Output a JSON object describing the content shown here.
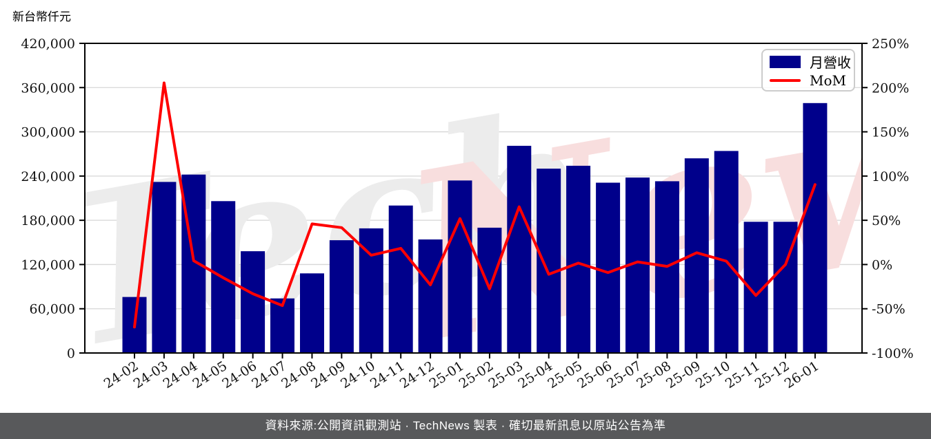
{
  "header": {
    "unit_label": "新台幣仟元"
  },
  "legend": {
    "items": [
      {
        "label": "月營收",
        "type": "bar",
        "color": "#00008B"
      },
      {
        "label": "MoM",
        "type": "line",
        "color": "#FF0000"
      }
    ]
  },
  "watermark": {
    "text": "TechNews",
    "part1": "Tech",
    "part2": "News",
    "color1": "#ECECEC",
    "color2": "#F8DEDE"
  },
  "footer": {
    "text": "資料來源:公開資訊觀測站 · TechNews 製表 · 確切最新訊息以原站公告為準",
    "background": "#58595B",
    "text_color": "#FFFFFF"
  },
  "colors": {
    "bar": "#00008B",
    "line": "#FF0000",
    "grid": "#D6D6D6",
    "axis": "#000000",
    "page_background": "#FFFFFF"
  },
  "chart_data": {
    "type": "bar",
    "title": "新台幣仟元",
    "categories": [
      "24-02",
      "24-03",
      "24-04",
      "24-05",
      "24-06",
      "24-07",
      "24-08",
      "24-09",
      "24-10",
      "24-11",
      "24-12",
      "25-01",
      "25-02",
      "25-03",
      "25-04",
      "25-05",
      "25-06",
      "25-07",
      "25-08",
      "25-09",
      "25-10",
      "25-11",
      "25-12",
      "26-01"
    ],
    "series": [
      {
        "name": "月營收",
        "type": "bar",
        "axis": "left",
        "color": "#00008B",
        "values": [
          76000,
          232000,
          242000,
          206000,
          138000,
          74000,
          108000,
          153000,
          169000,
          200000,
          154000,
          234000,
          170000,
          281000,
          250000,
          254000,
          231000,
          238000,
          233000,
          264000,
          274000,
          178000,
          178000,
          339000
        ]
      },
      {
        "name": "MoM",
        "type": "line",
        "axis": "right",
        "unit": "%",
        "color": "#FF0000",
        "values": [
          -70.7,
          205.3,
          4.3,
          -14.9,
          -33.0,
          -46.4,
          45.9,
          41.7,
          10.5,
          18.3,
          -23.0,
          51.9,
          -27.4,
          65.3,
          -11.0,
          1.6,
          -9.1,
          3.0,
          -2.1,
          13.3,
          3.8,
          -35.0,
          0.0,
          90.4
        ]
      }
    ],
    "left_axis": {
      "label": "新台幣仟元",
      "min": 0,
      "max": 420000,
      "tick_step": 60000,
      "tick_labels": [
        "0",
        "60,000",
        "120,000",
        "180,000",
        "240,000",
        "300,000",
        "360,000",
        "420,000"
      ]
    },
    "right_axis": {
      "min": -100,
      "max": 250,
      "tick_step": 50,
      "tick_labels": [
        "-100%",
        "-50%",
        "0%",
        "50%",
        "100%",
        "150%",
        "200%",
        "250%"
      ]
    },
    "grid": true,
    "legend_position": "top-right"
  }
}
